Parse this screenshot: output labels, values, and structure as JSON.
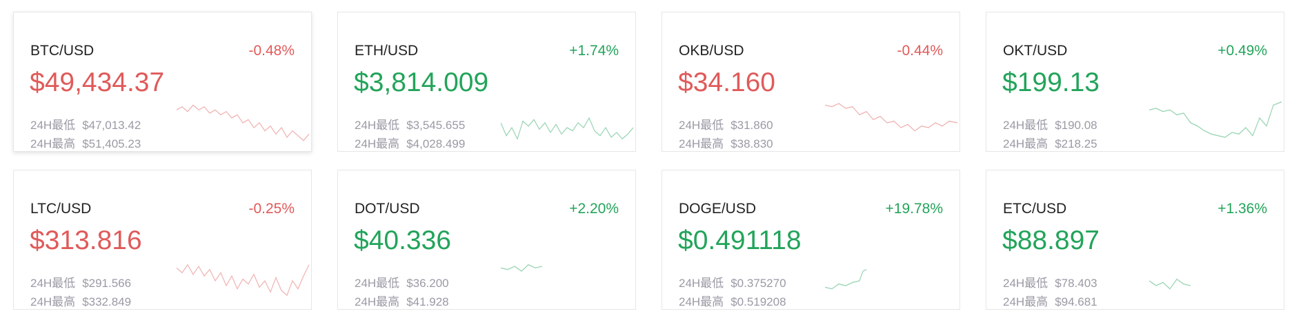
{
  "cards": [
    {
      "pair": "BTC/USD",
      "change": "-0.48%",
      "price": "$49,434.37",
      "low_label": "24H最低",
      "low": "$47,013.42",
      "high_label": "24H最高",
      "high": "$51,405.23",
      "color": "#e05a5a"
    },
    {
      "pair": "ETH/USD",
      "change": "+1.74%",
      "price": "$3,814.009",
      "low_label": "24H最低",
      "low": "$3,545.655",
      "high_label": "24H最高",
      "high": "$4,028.499",
      "color": "#22a45a"
    },
    {
      "pair": "OKB/USD",
      "change": "-0.44%",
      "price": "$34.160",
      "low_label": "24H最低",
      "low": "$31.860",
      "high_label": "24H最高",
      "high": "$38.830",
      "color": "#e05a5a"
    },
    {
      "pair": "OKT/USD",
      "change": "+0.49%",
      "price": "$199.13",
      "low_label": "24H最低",
      "low": "$190.08",
      "high_label": "24H最高",
      "high": "$218.25",
      "color": "#22a45a"
    },
    {
      "pair": "LTC/USD",
      "change": "-0.25%",
      "price": "$313.816",
      "low_label": "24H最低",
      "low": "$291.566",
      "high_label": "24H最高",
      "high": "$332.849",
      "color": "#e05a5a"
    },
    {
      "pair": "DOT/USD",
      "change": "+2.20%",
      "price": "$40.336",
      "low_label": "24H最低",
      "low": "$36.200",
      "high_label": "24H最高",
      "high": "$41.928",
      "color": "#22a45a"
    },
    {
      "pair": "DOGE/USD",
      "change": "+19.78%",
      "price": "$0.491118",
      "low_label": "24H最低",
      "low": "$0.375270",
      "high_label": "24H最高",
      "high": "$0.519208",
      "color": "#22a45a"
    },
    {
      "pair": "ETC/USD",
      "change": "+1.36%",
      "price": "$88.897",
      "low_label": "24H最低",
      "low": "$78.403",
      "high_label": "24H最高",
      "high": "$94.681",
      "color": "#22a45a"
    }
  ]
}
